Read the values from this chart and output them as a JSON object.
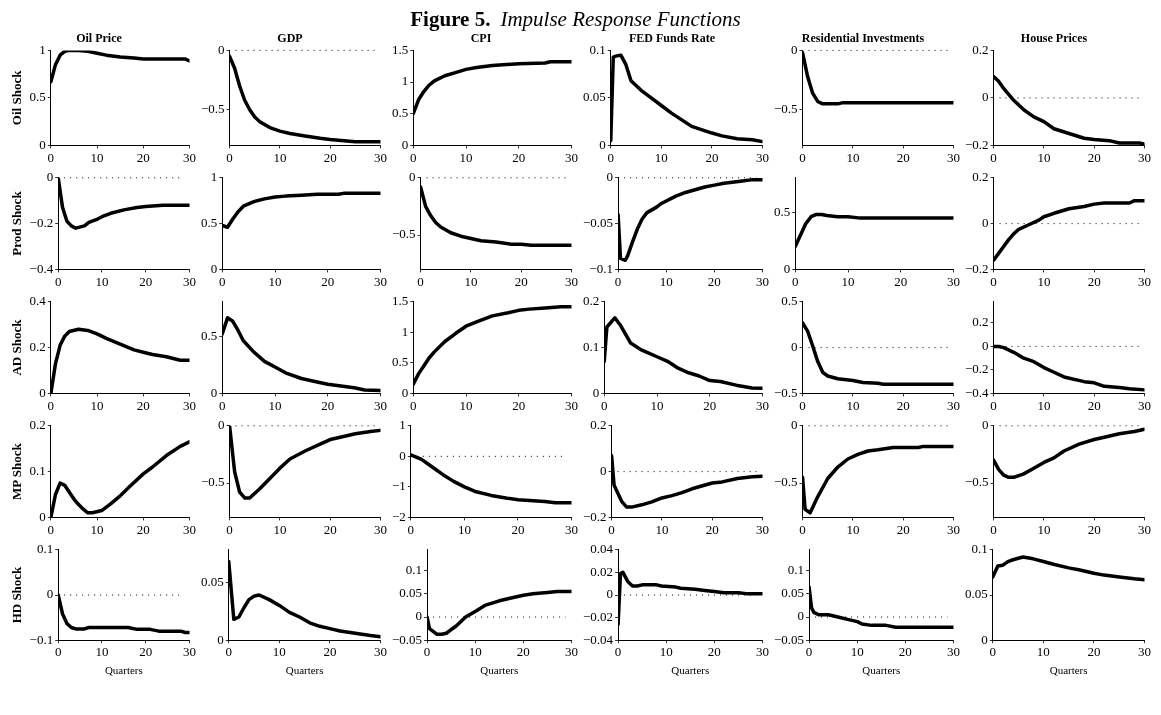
{
  "chart_data": [
    {
      "type": "line",
      "title": "Oil Price",
      "ylabel": "Oil Shock",
      "annotations": [
        "Figure 5.",
        "Impulse Response Functions"
      ],
      "x": [
        0,
        1,
        2,
        3,
        4,
        6,
        8,
        10,
        12,
        15,
        18,
        20,
        25,
        29,
        30
      ],
      "values": [
        0.67,
        0.85,
        0.95,
        0.99,
        1.0,
        1.0,
        0.99,
        0.97,
        0.95,
        0.93,
        0.92,
        0.91,
        0.91,
        0.91,
        0.89
      ],
      "color": "#000000",
      "xlim": [
        0,
        30
      ],
      "xticks": [
        0,
        10,
        20,
        30
      ],
      "ylim": [
        0,
        1
      ],
      "yticks": [
        0,
        0.5,
        1
      ]
    },
    {
      "type": "line",
      "title": "GDP",
      "x": [
        0,
        1,
        2,
        3,
        4,
        5,
        6,
        8,
        10,
        12,
        15,
        18,
        20,
        25,
        30
      ],
      "values": [
        -0.05,
        -0.15,
        -0.3,
        -0.42,
        -0.5,
        -0.56,
        -0.6,
        -0.65,
        -0.68,
        -0.7,
        -0.72,
        -0.74,
        -0.75,
        -0.77,
        -0.77
      ],
      "color": "#000000",
      "xlim": [
        0,
        30
      ],
      "xticks": [
        0,
        10,
        20,
        30
      ],
      "ylim": [
        -0.8,
        0
      ],
      "yticks": [
        {
          "value": -0.5,
          "label": "−0.5"
        },
        0
      ],
      "ref_lines": [
        {
          "axis": "y",
          "value": 0,
          "line_style": "dotted"
        }
      ]
    },
    {
      "type": "line",
      "title": "CPI",
      "x": [
        0,
        1,
        2,
        3,
        4,
        6,
        8,
        10,
        12,
        15,
        20,
        25,
        26,
        30
      ],
      "values": [
        0.5,
        0.72,
        0.85,
        0.95,
        1.02,
        1.1,
        1.15,
        1.2,
        1.23,
        1.26,
        1.29,
        1.3,
        1.32,
        1.32
      ],
      "color": "#000000",
      "xlim": [
        0,
        30
      ],
      "xticks": [
        0,
        10,
        20,
        30
      ],
      "ylim": [
        0,
        1.5
      ],
      "yticks": [
        0,
        0.5,
        1,
        1.5
      ]
    },
    {
      "type": "line",
      "title": "FED Funds Rate",
      "x": [
        0,
        0.5,
        1,
        2,
        3,
        4,
        6,
        8,
        10,
        12,
        16,
        20,
        22,
        25,
        28,
        30
      ],
      "values": [
        0.005,
        0.093,
        0.094,
        0.095,
        0.085,
        0.068,
        0.058,
        0.05,
        0.042,
        0.034,
        0.02,
        0.013,
        0.01,
        0.007,
        0.006,
        0.004
      ],
      "color": "#000000",
      "xlim": [
        0,
        30
      ],
      "xticks": [
        0,
        10,
        20,
        30
      ],
      "ylim": [
        0,
        0.1
      ],
      "yticks": [
        0,
        0.05,
        0.1
      ]
    },
    {
      "type": "line",
      "title": "Residential Investments",
      "x": [
        0,
        1,
        2,
        3,
        4,
        7,
        8,
        15,
        20,
        25,
        30
      ],
      "values": [
        -0.02,
        -0.22,
        -0.36,
        -0.43,
        -0.45,
        -0.45,
        -0.44,
        -0.44,
        -0.44,
        -0.44,
        -0.44
      ],
      "color": "#000000",
      "xlim": [
        0,
        30
      ],
      "xticks": [
        0,
        10,
        20,
        30
      ],
      "ylim": [
        -0.8,
        0
      ],
      "yticks": [
        {
          "value": -0.5,
          "label": "−0.5"
        },
        0
      ],
      "ref_lines": [
        {
          "axis": "y",
          "value": 0,
          "line_style": "dotted"
        }
      ]
    },
    {
      "type": "line",
      "title": "House Prices",
      "x": [
        0,
        1,
        2,
        4,
        6,
        8,
        10,
        12,
        15,
        18,
        20,
        23,
        25,
        29,
        30
      ],
      "values": [
        0.09,
        0.07,
        0.04,
        -0.01,
        -0.05,
        -0.08,
        -0.1,
        -0.13,
        -0.15,
        -0.17,
        -0.175,
        -0.18,
        -0.19,
        -0.19,
        -0.195
      ],
      "color": "#000000",
      "xlim": [
        0,
        30
      ],
      "xticks": [
        0,
        10,
        20,
        30
      ],
      "ylim": [
        -0.2,
        0.2
      ],
      "yticks": [
        {
          "value": -0.2,
          "label": "−0.2"
        },
        0,
        0.2
      ],
      "ref_lines": [
        {
          "axis": "y",
          "value": 0,
          "line_style": "dotted"
        }
      ]
    },
    {
      "type": "line",
      "ylabel": "Prod Shock",
      "x": [
        0,
        1,
        2,
        3,
        4,
        6,
        7,
        9,
        10,
        12,
        15,
        18,
        20,
        24,
        30
      ],
      "values": [
        0,
        -0.13,
        -0.19,
        -0.21,
        -0.22,
        -0.21,
        -0.195,
        -0.18,
        -0.17,
        -0.155,
        -0.14,
        -0.13,
        -0.125,
        -0.12,
        -0.12
      ],
      "color": "#000000",
      "xlim": [
        0,
        30
      ],
      "xticks": [
        0,
        10,
        20,
        30
      ],
      "ylim": [
        -0.4,
        0
      ],
      "yticks": [
        {
          "value": -0.4,
          "label": "−0.4"
        },
        {
          "value": -0.2,
          "label": "−0.2"
        },
        0
      ],
      "ref_lines": [
        {
          "axis": "y",
          "value": 0,
          "line_style": "dotted"
        }
      ]
    },
    {
      "type": "line",
      "x": [
        0,
        1,
        2,
        3,
        4,
        6,
        8,
        10,
        12,
        15,
        18,
        22,
        23,
        30
      ],
      "values": [
        0.48,
        0.46,
        0.55,
        0.63,
        0.69,
        0.74,
        0.77,
        0.79,
        0.8,
        0.81,
        0.82,
        0.82,
        0.83,
        0.83
      ],
      "color": "#000000",
      "xlim": [
        0,
        30
      ],
      "xticks": [
        0,
        10,
        20,
        30
      ],
      "ylim": [
        0,
        1
      ],
      "yticks": [
        0,
        0.5,
        1
      ]
    },
    {
      "type": "line",
      "x": [
        0,
        1,
        2,
        3,
        4,
        6,
        8,
        10,
        12,
        15,
        18,
        20,
        22,
        30
      ],
      "values": [
        -0.08,
        -0.25,
        -0.33,
        -0.39,
        -0.43,
        -0.48,
        -0.51,
        -0.53,
        -0.55,
        -0.56,
        -0.58,
        -0.58,
        -0.59,
        -0.59
      ],
      "color": "#000000",
      "xlim": [
        0,
        30
      ],
      "xticks": [
        0,
        10,
        20,
        30
      ],
      "ylim": [
        -0.8,
        0
      ],
      "yticks": [
        {
          "value": -0.5,
          "label": "−0.5"
        },
        0
      ],
      "ref_lines": [
        {
          "axis": "y",
          "value": 0,
          "line_style": "dotted"
        }
      ]
    },
    {
      "type": "line",
      "x": [
        0,
        0.5,
        1.5,
        2,
        3,
        4,
        5,
        6,
        8,
        9,
        12,
        14,
        18,
        20,
        22,
        25,
        28,
        30
      ],
      "values": [
        -0.04,
        -0.088,
        -0.09,
        -0.085,
        -0.07,
        -0.056,
        -0.045,
        -0.038,
        -0.032,
        -0.028,
        -0.02,
        -0.016,
        -0.01,
        -0.008,
        -0.006,
        -0.004,
        -0.002,
        -0.002
      ],
      "color": "#000000",
      "xlim": [
        0,
        30
      ],
      "xticks": [
        0,
        10,
        20,
        30
      ],
      "ylim": [
        -0.1,
        0
      ],
      "yticks": [
        {
          "value": -0.1,
          "label": "−0.1"
        },
        {
          "value": -0.05,
          "label": "−0.05"
        },
        0
      ],
      "ref_lines": [
        {
          "axis": "y",
          "value": 0,
          "line_style": "dotted"
        }
      ]
    },
    {
      "type": "line",
      "x": [
        0,
        1,
        2,
        3,
        4,
        5,
        6,
        8,
        10,
        12,
        20,
        30
      ],
      "values": [
        0.2,
        0.3,
        0.4,
        0.46,
        0.48,
        0.48,
        0.47,
        0.46,
        0.46,
        0.45,
        0.45,
        0.45
      ],
      "color": "#000000",
      "xlim": [
        0,
        30
      ],
      "xticks": [
        0,
        10,
        20,
        30
      ],
      "ylim": [
        0,
        0.8
      ],
      "yticks": [
        0,
        0.5
      ]
    },
    {
      "type": "line",
      "x": [
        0,
        1,
        2,
        3,
        4,
        5,
        7,
        9,
        10,
        12,
        15,
        18,
        20,
        22,
        27,
        28,
        30
      ],
      "values": [
        -0.16,
        -0.13,
        -0.1,
        -0.07,
        -0.045,
        -0.025,
        -0.005,
        0.015,
        0.03,
        0.045,
        0.065,
        0.075,
        0.085,
        0.09,
        0.09,
        0.1,
        0.1
      ],
      "color": "#000000",
      "xlim": [
        0,
        30
      ],
      "xticks": [
        0,
        10,
        20,
        30
      ],
      "ylim": [
        -0.2,
        0.2
      ],
      "yticks": [
        {
          "value": -0.2,
          "label": "−0.2"
        },
        0,
        0.2
      ],
      "ref_lines": [
        {
          "axis": "y",
          "value": 0,
          "line_style": "dotted"
        }
      ]
    },
    {
      "type": "line",
      "ylabel": "AD Shock",
      "x": [
        0,
        1,
        2,
        3,
        4,
        6,
        8,
        10,
        12,
        15,
        18,
        20,
        22,
        25,
        28,
        30
      ],
      "values": [
        0,
        0.13,
        0.21,
        0.25,
        0.27,
        0.28,
        0.275,
        0.26,
        0.24,
        0.215,
        0.19,
        0.18,
        0.17,
        0.16,
        0.145,
        0.145
      ],
      "color": "#000000",
      "xlim": [
        0,
        30
      ],
      "xticks": [
        0,
        10,
        20,
        30
      ],
      "ylim": [
        0,
        0.4
      ],
      "yticks": [
        0,
        0.2,
        0.4
      ]
    },
    {
      "type": "line",
      "x": [
        0,
        1,
        2,
        3,
        4,
        6,
        8,
        10,
        12,
        15,
        18,
        20,
        25,
        27,
        30
      ],
      "values": [
        0.52,
        0.66,
        0.63,
        0.55,
        0.46,
        0.36,
        0.28,
        0.23,
        0.18,
        0.13,
        0.1,
        0.08,
        0.05,
        0.03,
        0.025
      ],
      "color": "#000000",
      "xlim": [
        0,
        30
      ],
      "xticks": [
        0,
        10,
        20,
        30
      ],
      "ylim": [
        0,
        0.8
      ],
      "yticks": [
        0,
        0.5
      ]
    },
    {
      "type": "line",
      "x": [
        0,
        1,
        2,
        3,
        4,
        6,
        8,
        10,
        12,
        15,
        18,
        20,
        22,
        25,
        28,
        30
      ],
      "values": [
        0.15,
        0.32,
        0.45,
        0.58,
        0.68,
        0.85,
        0.98,
        1.1,
        1.17,
        1.27,
        1.32,
        1.36,
        1.38,
        1.4,
        1.42,
        1.42
      ],
      "color": "#000000",
      "xlim": [
        0,
        30
      ],
      "xticks": [
        0,
        10,
        20,
        30
      ],
      "ylim": [
        0,
        1.5
      ],
      "yticks": [
        0,
        0.5,
        1,
        1.5
      ]
    },
    {
      "type": "line",
      "x": [
        0,
        0.5,
        2,
        3,
        4,
        5,
        7,
        8,
        10,
        12,
        14,
        16,
        18,
        20,
        22,
        25,
        28,
        30
      ],
      "values": [
        0.07,
        0.145,
        0.165,
        0.15,
        0.13,
        0.11,
        0.095,
        0.09,
        0.08,
        0.07,
        0.055,
        0.045,
        0.038,
        0.028,
        0.026,
        0.018,
        0.012,
        0.011
      ],
      "color": "#000000",
      "xlim": [
        0,
        30
      ],
      "xticks": [
        0,
        10,
        20,
        30
      ],
      "ylim": [
        0,
        0.2
      ],
      "yticks": [
        0,
        0.1,
        0.2
      ]
    },
    {
      "type": "line",
      "x": [
        0,
        1,
        2,
        3,
        4,
        5,
        7,
        10,
        12,
        15,
        16,
        30
      ],
      "values": [
        0.27,
        0.18,
        0.02,
        -0.15,
        -0.27,
        -0.31,
        -0.34,
        -0.36,
        -0.38,
        -0.39,
        -0.4,
        -0.4
      ],
      "color": "#000000",
      "xlim": [
        0,
        30
      ],
      "xticks": [
        0,
        10,
        20,
        30
      ],
      "ylim": [
        -0.5,
        0.5
      ],
      "yticks": [
        {
          "value": -0.5,
          "label": "−0.5"
        },
        0,
        0.5
      ],
      "ref_lines": [
        {
          "axis": "y",
          "value": 0,
          "line_style": "dotted"
        }
      ]
    },
    {
      "type": "line",
      "x": [
        0,
        1,
        2,
        4,
        6,
        8,
        10,
        12,
        14,
        18,
        20,
        22,
        25,
        27,
        30
      ],
      "values": [
        0,
        0,
        -0.01,
        -0.05,
        -0.1,
        -0.13,
        -0.18,
        -0.22,
        -0.26,
        -0.3,
        -0.31,
        -0.34,
        -0.35,
        -0.36,
        -0.37
      ],
      "color": "#000000",
      "xlim": [
        0,
        30
      ],
      "xticks": [
        0,
        10,
        20,
        30
      ],
      "ylim": [
        -0.4,
        0.38
      ],
      "yticks": [
        {
          "value": -0.4,
          "label": "−0.4"
        },
        {
          "value": -0.2,
          "label": "−0.2"
        },
        0,
        0.2
      ],
      "ref_lines": [
        {
          "axis": "y",
          "value": 0,
          "line_style": "dotted"
        }
      ]
    },
    {
      "type": "line",
      "ylabel": "MP Shock",
      "x": [
        0,
        1,
        2,
        3,
        4,
        5,
        6,
        7,
        8,
        9,
        11,
        13,
        15,
        17,
        20,
        22,
        25,
        28,
        30
      ],
      "values": [
        0,
        0.05,
        0.075,
        0.07,
        0.055,
        0.04,
        0.028,
        0.018,
        0.01,
        0.01,
        0.015,
        0.03,
        0.047,
        0.067,
        0.095,
        0.11,
        0.135,
        0.155,
        0.165
      ],
      "color": "#000000",
      "xlim": [
        0,
        30
      ],
      "xticks": [
        0,
        10,
        20,
        30
      ],
      "ylim": [
        0,
        0.2
      ],
      "yticks": [
        0,
        0.1,
        0.2
      ]
    },
    {
      "type": "line",
      "x": [
        0,
        1,
        2,
        3,
        4,
        6,
        8,
        10,
        12,
        15,
        18,
        20,
        22,
        25,
        28,
        30
      ],
      "values": [
        0,
        -0.4,
        -0.58,
        -0.63,
        -0.63,
        -0.55,
        -0.46,
        -0.37,
        -0.29,
        -0.22,
        -0.16,
        -0.12,
        -0.1,
        -0.07,
        -0.05,
        -0.04
      ],
      "color": "#000000",
      "xlim": [
        0,
        30
      ],
      "xticks": [
        0,
        10,
        20,
        30
      ],
      "ylim": [
        -0.8,
        0
      ],
      "yticks": [
        {
          "value": -0.5,
          "label": "−0.5"
        },
        0
      ],
      "ref_lines": [
        {
          "axis": "y",
          "value": 0,
          "line_style": "dotted"
        }
      ]
    },
    {
      "type": "line",
      "x": [
        0,
        2,
        4,
        6,
        8,
        10,
        12,
        15,
        18,
        20,
        25,
        27,
        30
      ],
      "values": [
        0.05,
        -0.1,
        -0.35,
        -0.6,
        -0.82,
        -1,
        -1.15,
        -1.28,
        -1.37,
        -1.42,
        -1.48,
        -1.52,
        -1.52
      ],
      "color": "#000000",
      "xlim": [
        0,
        30
      ],
      "xticks": [
        0,
        10,
        20,
        30
      ],
      "ylim": [
        -2,
        1
      ],
      "yticks": [
        {
          "value": -2,
          "label": "−2"
        },
        {
          "value": -1,
          "label": "−1"
        },
        0,
        1
      ],
      "ref_lines": [
        {
          "axis": "y",
          "value": 0,
          "line_style": "dotted"
        }
      ]
    },
    {
      "type": "line",
      "x": [
        0,
        0.5,
        2,
        3,
        4,
        6,
        8,
        10,
        12,
        14,
        16,
        20,
        22,
        25,
        28,
        30
      ],
      "values": [
        0.07,
        -0.06,
        -0.13,
        -0.155,
        -0.155,
        -0.145,
        -0.132,
        -0.115,
        -0.105,
        -0.092,
        -0.075,
        -0.05,
        -0.045,
        -0.03,
        -0.022,
        -0.02
      ],
      "color": "#000000",
      "xlim": [
        0,
        30
      ],
      "xticks": [
        0,
        10,
        20,
        30
      ],
      "ylim": [
        -0.2,
        0.2
      ],
      "yticks": [
        {
          "value": -0.2,
          "label": "−0.2"
        },
        0,
        0.2
      ],
      "ref_lines": [
        {
          "axis": "y",
          "value": 0,
          "line_style": "dotted"
        }
      ]
    },
    {
      "type": "line",
      "x": [
        0,
        0.5,
        1.5,
        3,
        5,
        7,
        9,
        11,
        13,
        15,
        18,
        23,
        24,
        30
      ],
      "values": [
        -0.45,
        -0.73,
        -0.76,
        -0.62,
        -0.46,
        -0.36,
        -0.29,
        -0.25,
        -0.22,
        -0.21,
        -0.19,
        -0.19,
        -0.18,
        -0.18
      ],
      "color": "#000000",
      "xlim": [
        0,
        30
      ],
      "xticks": [
        0,
        10,
        20,
        30
      ],
      "ylim": [
        -0.8,
        0
      ],
      "yticks": [
        {
          "value": -0.5,
          "label": "−0.5"
        },
        0
      ],
      "ref_lines": [
        {
          "axis": "y",
          "value": 0,
          "line_style": "dotted"
        }
      ]
    },
    {
      "type": "line",
      "x": [
        0,
        1,
        2,
        3,
        4,
        6,
        8,
        10,
        12,
        14,
        17,
        20,
        22,
        25,
        28,
        30
      ],
      "values": [
        -0.3,
        -0.38,
        -0.43,
        -0.45,
        -0.45,
        -0.42,
        -0.37,
        -0.32,
        -0.28,
        -0.22,
        -0.16,
        -0.12,
        -0.1,
        -0.07,
        -0.05,
        -0.03
      ],
      "color": "#000000",
      "xlim": [
        0,
        30
      ],
      "xticks": [
        0,
        10,
        20,
        30
      ],
      "ylim": [
        -0.8,
        0
      ],
      "yticks": [
        {
          "value": -0.5,
          "label": "−0.5"
        },
        0
      ],
      "ref_lines": [
        {
          "axis": "y",
          "value": 0,
          "line_style": "dotted"
        }
      ]
    },
    {
      "type": "line",
      "ylabel": "HD Shock",
      "xlabel": "Quarters",
      "x": [
        0,
        1,
        2,
        3,
        4,
        6,
        7,
        10,
        16,
        18,
        21,
        23,
        28,
        29,
        30
      ],
      "values": [
        0,
        -0.042,
        -0.063,
        -0.072,
        -0.075,
        -0.075,
        -0.072,
        -0.072,
        -0.072,
        -0.076,
        -0.076,
        -0.08,
        -0.08,
        -0.083,
        -0.083
      ],
      "color": "#000000",
      "xlim": [
        0,
        30
      ],
      "xticks": [
        0,
        10,
        20,
        30
      ],
      "ylim": [
        -0.1,
        0.1
      ],
      "yticks": [
        {
          "value": -0.1,
          "label": "−0.1"
        },
        0,
        0.1
      ],
      "ref_lines": [
        {
          "axis": "y",
          "value": 0,
          "line_style": "dotted"
        }
      ]
    },
    {
      "type": "line",
      "xlabel": "Quarters",
      "x": [
        0,
        1,
        2,
        3,
        4,
        5,
        6,
        8,
        10,
        12,
        14,
        16,
        18,
        20,
        22,
        25,
        28,
        30
      ],
      "values": [
        0.068,
        0.018,
        0.02,
        0.028,
        0.035,
        0.038,
        0.039,
        0.035,
        0.03,
        0.024,
        0.02,
        0.015,
        0.012,
        0.01,
        0.008,
        0.006,
        0.004,
        0.003
      ],
      "color": "#000000",
      "xlim": [
        0,
        30
      ],
      "xticks": [
        0,
        10,
        20,
        30
      ],
      "ylim": [
        0,
        0.078
      ],
      "yticks": [
        0,
        0.05
      ]
    },
    {
      "type": "line",
      "xlabel": "Quarters",
      "x": [
        0,
        0.5,
        2,
        3,
        4,
        5,
        6,
        8,
        10,
        12,
        15,
        17,
        20,
        22,
        25,
        27,
        30
      ],
      "values": [
        0,
        -0.025,
        -0.037,
        -0.037,
        -0.035,
        -0.027,
        -0.02,
        0,
        0.012,
        0.025,
        0.035,
        0.04,
        0.047,
        0.05,
        0.053,
        0.055,
        0.055
      ],
      "color": "#000000",
      "xlim": [
        0,
        30
      ],
      "xticks": [
        0,
        10,
        20,
        30
      ],
      "ylim": [
        -0.05,
        0.145
      ],
      "yticks": [
        {
          "value": -0.05,
          "label": "−0.05"
        },
        0,
        0.05,
        0.1
      ],
      "ref_lines": [
        {
          "axis": "y",
          "value": 0,
          "line_style": "dotted"
        }
      ]
    },
    {
      "type": "line",
      "xlabel": "Quarters",
      "x": [
        0,
        0.5,
        1,
        2,
        3,
        4,
        5,
        8,
        9,
        12,
        13,
        16,
        18,
        20,
        22,
        25,
        27,
        30
      ],
      "values": [
        -0.026,
        0.019,
        0.02,
        0.012,
        0.008,
        0.008,
        0.009,
        0.009,
        0.008,
        0.007,
        0.006,
        0.005,
        0.004,
        0.003,
        0.002,
        0.002,
        0.001,
        0.001
      ],
      "color": "#000000",
      "xlim": [
        0,
        30
      ],
      "xticks": [
        0,
        10,
        20,
        30
      ],
      "ylim": [
        -0.04,
        0.04
      ],
      "yticks": [
        {
          "value": -0.04,
          "label": "−0.04"
        },
        {
          "value": -0.02,
          "label": "−0.02"
        },
        0,
        0.02,
        0.04
      ],
      "ref_lines": [
        {
          "axis": "y",
          "value": 0,
          "line_style": "dotted"
        }
      ]
    },
    {
      "type": "line",
      "xlabel": "Quarters",
      "x": [
        0,
        0.5,
        1,
        2,
        4,
        6,
        8,
        10,
        11,
        13,
        16,
        18,
        30
      ],
      "values": [
        0.065,
        0.02,
        0.01,
        0.005,
        0.005,
        0,
        -0.005,
        -0.01,
        -0.015,
        -0.018,
        -0.018,
        -0.022,
        -0.022
      ],
      "color": "#000000",
      "xlim": [
        0,
        30
      ],
      "xticks": [
        0,
        10,
        20,
        30
      ],
      "ylim": [
        -0.05,
        0.145
      ],
      "yticks": [
        {
          "value": -0.05,
          "label": "−0.05"
        },
        0,
        0.05,
        0.1
      ],
      "ref_lines": [
        {
          "axis": "y",
          "value": 0,
          "line_style": "dotted"
        }
      ]
    },
    {
      "type": "line",
      "xlabel": "Quarters",
      "x": [
        0,
        1,
        2,
        3,
        4,
        6,
        8,
        10,
        12,
        15,
        17,
        20,
        22,
        25,
        28,
        30
      ],
      "values": [
        0.07,
        0.082,
        0.083,
        0.087,
        0.089,
        0.092,
        0.09,
        0.087,
        0.084,
        0.08,
        0.078,
        0.074,
        0.072,
        0.07,
        0.068,
        0.067
      ],
      "color": "#000000",
      "xlim": [
        0,
        30
      ],
      "xticks": [
        0,
        10,
        20,
        30
      ],
      "ylim": [
        0,
        0.1
      ],
      "yticks": [
        0,
        0.05,
        0.1
      ]
    }
  ]
}
